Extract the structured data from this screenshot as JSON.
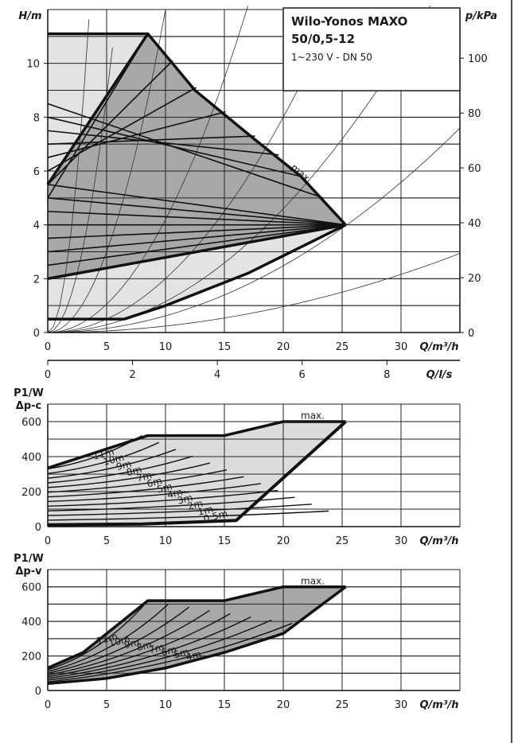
{
  "chart_data": [
    {
      "type": "line",
      "title": "Wilo-Yonos MAXO 50/0,5-12",
      "subtitle": "1~230 V - DN 50",
      "xlabel": "Q/m³/h",
      "ylabel": "H/m",
      "y2label": "p/kPa",
      "x2label": "Q/l/s",
      "xlim": [
        0,
        35
      ],
      "ylim": [
        0,
        12
      ],
      "x_ticks": [
        "0",
        "5",
        "10",
        "15",
        "20",
        "25",
        "30"
      ],
      "y_ticks": [
        "0",
        "2",
        "4",
        "6",
        "8",
        "10"
      ],
      "y2_ticks": [
        "0",
        "20",
        "40",
        "60",
        "80",
        "100"
      ],
      "x2_ticks": [
        "0",
        "2",
        "4",
        "6",
        "8"
      ],
      "annotations": [
        "max."
      ],
      "grid": true,
      "series": [
        {
          "name": "max.",
          "x": [
            0,
            8.5,
            12.5,
            17.5,
            21.5,
            25.3
          ],
          "y": [
            11.1,
            11.1,
            9.0,
            7.2,
            5.8,
            4.0
          ]
        },
        {
          "x": [
            0,
            25.3
          ],
          "y": [
            2.0,
            4.0
          ]
        },
        {
          "x": [
            0,
            8.5
          ],
          "y": [
            5.5,
            11.1
          ]
        },
        {
          "x": [
            0,
            6.5,
            10,
            17,
            25.3
          ],
          "y": [
            0.5,
            0.5,
            1.0,
            2.2,
            4.0
          ]
        }
      ]
    },
    {
      "type": "line",
      "ylabel": "P1/W",
      "ylabel2": "Δp-c",
      "xlabel": "Q/m³/h",
      "xlim": [
        0,
        35
      ],
      "ylim": [
        0,
        700
      ],
      "x_ticks": [
        "0",
        "5",
        "10",
        "15",
        "20",
        "25",
        "30"
      ],
      "y_ticks": [
        "0",
        "200",
        "400",
        "600"
      ],
      "annotations": [
        "max."
      ],
      "curve_labels": [
        "11m",
        "10m",
        "9m",
        "8m",
        "7m",
        "6m",
        "5m",
        "4m",
        "3m",
        "2m",
        "1m",
        "0,5m"
      ],
      "grid": true,
      "series": [
        {
          "name": "max.",
          "x": [
            0,
            8.5,
            15,
            20,
            25.3
          ],
          "y": [
            335,
            520,
            520,
            600,
            600
          ]
        },
        {
          "x": [
            0,
            8,
            16,
            25.3
          ],
          "y": [
            10,
            15,
            35,
            600
          ]
        }
      ]
    },
    {
      "type": "line",
      "ylabel": "P1/W",
      "ylabel2": "Δp-v",
      "xlabel": "Q/m³/h",
      "xlim": [
        0,
        35
      ],
      "ylim": [
        0,
        700
      ],
      "x_ticks": [
        "0",
        "5",
        "10",
        "15",
        "20",
        "25",
        "30"
      ],
      "y_ticks": [
        "0",
        "200",
        "400",
        "600"
      ],
      "annotations": [
        "max."
      ],
      "curve_labels": [
        "11m",
        "10m",
        "9m",
        "8m",
        "7m",
        "6m",
        "5m",
        "4m"
      ],
      "grid": true,
      "series": [
        {
          "name": "max.",
          "x": [
            0,
            3,
            8.5,
            15,
            20,
            25.3
          ],
          "y": [
            130,
            220,
            520,
            520,
            600,
            600
          ]
        },
        {
          "x": [
            0,
            5,
            10,
            15,
            20,
            25.3
          ],
          "y": [
            40,
            70,
            130,
            220,
            330,
            600
          ]
        }
      ]
    }
  ]
}
